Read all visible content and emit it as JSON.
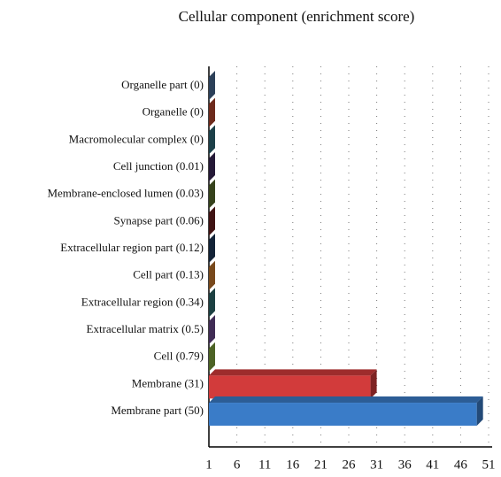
{
  "chart_data": {
    "type": "bar3d_horizontal",
    "title": "Cellular component (enrichment score)",
    "categories": [
      "Organelle part (0)",
      "Organelle (0)",
      "Macromolecular complex (0)",
      "Cell junction (0.01)",
      "Membrane-enclosed lumen (0.03)",
      "Synapse part (0.06)",
      "Extracellular region part (0.12)",
      "Cell part (0.13)",
      "Extracellular region (0.34)",
      "Extracellular matrix (0.5)",
      "Cell (0.79)",
      "Membrane (31)",
      "Membrane part (50)"
    ],
    "values": [
      0,
      0,
      0,
      0.01,
      0.03,
      0.06,
      0.12,
      0.13,
      0.34,
      0.5,
      0.79,
      31,
      50
    ],
    "colors": [
      "#4a6a94",
      "#b5462e",
      "#2f6b7a",
      "#3d2a5c",
      "#5a6e2e",
      "#6b1f1f",
      "#1f3a5c",
      "#c87a2e",
      "#2e6b6e",
      "#6a4a8e",
      "#7ea33e",
      "#d23b3b",
      "#3a7cc8"
    ],
    "xlim": [
      1,
      51
    ],
    "xticks": [
      1,
      6,
      11,
      16,
      21,
      26,
      31,
      36,
      41,
      46,
      51
    ],
    "grid": true
  }
}
